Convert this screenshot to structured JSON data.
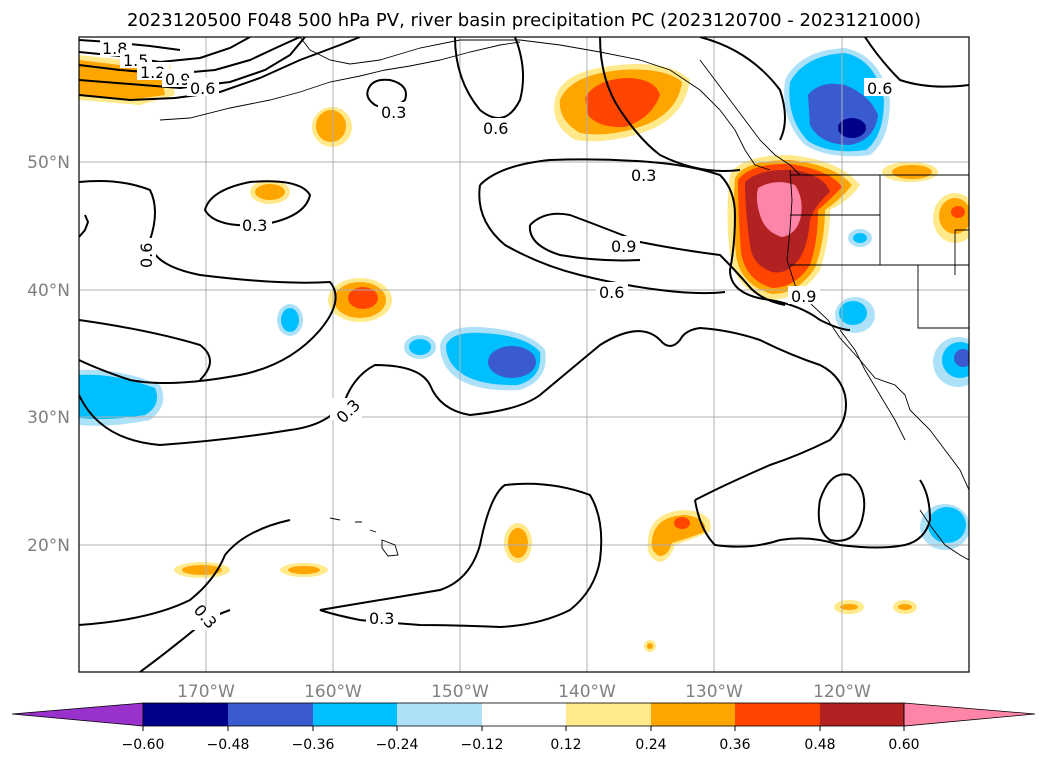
{
  "title": "2023120500 F048 500 hPa PV, river basin precipitation PC (2023120700 - 2023121000)",
  "lat_labels": [
    "20°N",
    "30°N",
    "40°N",
    "50°N"
  ],
  "lon_labels": [
    "170°W",
    "160°W",
    "150°W",
    "140°W",
    "130°W",
    "120°W"
  ],
  "contour_labels": [
    "1.8",
    "1.5",
    "1.2",
    "0.9",
    "0.6",
    "0.3",
    "0.3",
    "0.6",
    "0.6",
    "0.3",
    "0.9",
    "0.6",
    "0.9",
    "0.6",
    "0.3",
    "0.3",
    "0.3"
  ],
  "colorbar": {
    "ticks": [
      "−0.60",
      "−0.48",
      "−0.36",
      "−0.24",
      "−0.12",
      "0.12",
      "0.24",
      "0.36",
      "0.48",
      "0.60"
    ],
    "colors": {
      "lt_-0.60": "#9932CC",
      "-0.60_-0.48": "#00008B",
      "-0.48_-0.36": "#3A5BD0",
      "-0.36_-0.24": "#00BFFF",
      "-0.24_-0.12": "#ADE1F8",
      "-0.12_0.12": "#FFFFFF",
      "0.12_0.24": "#FFE98A",
      "0.24_0.36": "#FFA500",
      "0.36_0.48": "#FF4500",
      "0.48_0.60": "#B22222",
      "gt_0.60": "#FF85A8"
    }
  }
}
